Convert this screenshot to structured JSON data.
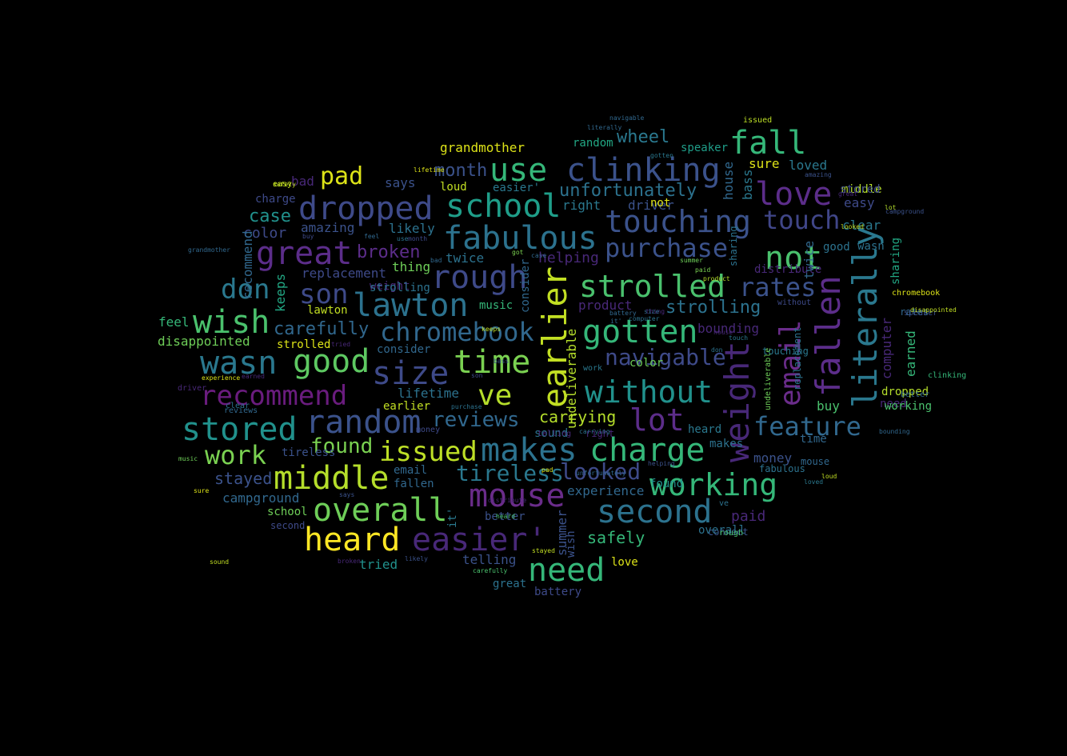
{
  "words": [
    {
      "text": "clinking",
      "color": "#3b528b"
    },
    {
      "text": "fall",
      "color": "#35b779"
    },
    {
      "text": "use",
      "color": "#35b779"
    },
    {
      "text": "love",
      "color": "#5c2d8a"
    },
    {
      "text": "school",
      "color": "#1f9e89"
    },
    {
      "text": "dropped",
      "color": "#3e4a89"
    },
    {
      "text": "touching",
      "color": "#3b528b"
    },
    {
      "text": "touch",
      "color": "#404688"
    },
    {
      "text": "fabulous",
      "color": "#2c728e"
    },
    {
      "text": "purchase",
      "color": "#3b528b"
    },
    {
      "text": "not",
      "color": "#4ac16d"
    },
    {
      "text": "great",
      "color": "#5c2d8a"
    },
    {
      "text": "pad",
      "color": "#dde318"
    },
    {
      "text": "rough",
      "color": "#3e4a89"
    },
    {
      "text": "strolled",
      "color": "#4ac16d"
    },
    {
      "text": "rates",
      "color": "#3b528b"
    },
    {
      "text": "lawton",
      "color": "#2c728e"
    },
    {
      "text": "wish",
      "color": "#4ac16d"
    },
    {
      "text": "earlier",
      "color": "#c2df23"
    },
    {
      "text": "gotten",
      "color": "#35b779"
    },
    {
      "text": "literally",
      "color": "#2a788e"
    },
    {
      "text": "fallen",
      "color": "#5c2d8a"
    },
    {
      "text": "email",
      "color": "#6a2c8a"
    },
    {
      "text": "weight",
      "color": "#482878"
    },
    {
      "text": "chromebook",
      "color": "#31688e"
    },
    {
      "text": "wasn",
      "color": "#2a788e"
    },
    {
      "text": "good",
      "color": "#5ec962"
    },
    {
      "text": "size",
      "color": "#3e4a89"
    },
    {
      "text": "time",
      "color": "#7ad151"
    },
    {
      "text": "ve",
      "color": "#b5de2b"
    },
    {
      "text": "without",
      "color": "#21918c"
    },
    {
      "text": "navigable",
      "color": "#3e4a89"
    },
    {
      "text": "recommend",
      "color": "#6a1c7e"
    },
    {
      "text": "stored",
      "color": "#21918c"
    },
    {
      "text": "random",
      "color": "#3b528b"
    },
    {
      "text": "lot",
      "color": "#5c2d8a"
    },
    {
      "text": "feature",
      "color": "#31688e"
    },
    {
      "text": "issued",
      "color": "#bddf26"
    },
    {
      "text": "makes",
      "color": "#2c728e"
    },
    {
      "text": "charge",
      "color": "#35b779"
    },
    {
      "text": "work",
      "color": "#7ad151"
    },
    {
      "text": "middle",
      "color": "#b5de2b"
    },
    {
      "text": "mouse",
      "color": "#6a2c8a"
    },
    {
      "text": "working",
      "color": "#35b779"
    },
    {
      "text": "overall",
      "color": "#6ece58"
    },
    {
      "text": "second",
      "color": "#2c728e"
    },
    {
      "text": "heard",
      "color": "#fde725"
    },
    {
      "text": "easier'",
      "color": "#482878"
    },
    {
      "text": "need",
      "color": "#35b779"
    },
    {
      "text": "son",
      "color": "#3e4a89"
    },
    {
      "text": "don",
      "color": "#2a788e"
    },
    {
      "text": "reviews",
      "color": "#31688e"
    },
    {
      "text": "carrying",
      "color": "#b5de2b"
    },
    {
      "text": "found",
      "color": "#7ad151"
    },
    {
      "text": "tireless",
      "color": "#2a788e"
    },
    {
      "text": "looked",
      "color": "#3e4a89"
    },
    {
      "text": "unfortunately",
      "color": "#2c728e"
    },
    {
      "text": "wheel",
      "color": "#2a788e"
    },
    {
      "text": "strolling",
      "color": "#2c728e"
    },
    {
      "text": "carefully",
      "color": "#31688e"
    },
    {
      "text": "grandmother",
      "color": "#dde318"
    },
    {
      "text": "month",
      "color": "#3b528b"
    },
    {
      "text": "loved",
      "color": "#2a788e"
    },
    {
      "text": "sure",
      "color": "#dde318"
    },
    {
      "text": "speaker",
      "color": "#1f9e89"
    },
    {
      "text": "random",
      "color": "#22a884"
    },
    {
      "text": "case",
      "color": "#21918c"
    },
    {
      "text": "color",
      "color": "#3e4a89"
    },
    {
      "text": "amazing",
      "color": "#3b528b"
    },
    {
      "text": "broken",
      "color": "#5c2d8a"
    },
    {
      "text": "replacement",
      "color": "#3e4a89"
    },
    {
      "text": "twice",
      "color": "#2c728e"
    },
    {
      "text": "thing",
      "color": "#6ece58"
    },
    {
      "text": "helping",
      "color": "#482878"
    },
    {
      "text": "likely",
      "color": "#2c728e"
    },
    {
      "text": "says",
      "color": "#3b528b"
    },
    {
      "text": "bad",
      "color": "#482878"
    },
    {
      "text": "charge",
      "color": "#3e4a89"
    },
    {
      "text": "loud",
      "color": "#c2df23"
    },
    {
      "text": "easier'",
      "color": "#2a788e"
    },
    {
      "text": "right",
      "color": "#2a788e"
    },
    {
      "text": "driver",
      "color": "#3b528b"
    },
    {
      "text": "house",
      "color": "#31688e"
    },
    {
      "text": "bass",
      "color": "#2a788e"
    },
    {
      "text": "product",
      "color": "#482878"
    },
    {
      "text": "paid",
      "color": "#482878"
    },
    {
      "text": "buy",
      "color": "#4ac16d"
    },
    {
      "text": "stayed",
      "color": "#3b528b"
    },
    {
      "text": "campground",
      "color": "#31688e"
    },
    {
      "text": "experience",
      "color": "#31688e"
    },
    {
      "text": "safely",
      "color": "#35b779"
    },
    {
      "text": "money",
      "color": "#3b528b"
    },
    {
      "text": "keeps",
      "color": "#22a884"
    },
    {
      "text": "lifetime",
      "color": "#2c728e"
    },
    {
      "text": "consider",
      "color": "#31688e"
    },
    {
      "text": "earned",
      "color": "#35b779"
    },
    {
      "text": "computer",
      "color": "#482878"
    },
    {
      "text": "sharing",
      "color": "#22a884"
    },
    {
      "text": "clear",
      "color": "#2a788e"
    },
    {
      "text": "good",
      "color": "#2c728e"
    },
    {
      "text": "easy",
      "color": "#3e4a89"
    },
    {
      "text": "distribute",
      "color": "#482878"
    },
    {
      "text": "bounding",
      "color": "#482878"
    },
    {
      "text": "undeliverable",
      "color": "#b5de2b"
    },
    {
      "text": "music",
      "color": "#35b779"
    },
    {
      "text": "battery",
      "color": "#3e4a89"
    },
    {
      "text": "tried",
      "color": "#21918c"
    },
    {
      "text": "telling",
      "color": "#3b528b"
    },
    {
      "text": "great",
      "color": "#2c728e"
    },
    {
      "text": "summer",
      "color": "#3b528b"
    },
    {
      "text": "better",
      "color": "#3b528b"
    },
    {
      "text": "sound",
      "color": "#2c728e"
    },
    {
      "text": "fallen",
      "color": "#31688e"
    },
    {
      "text": "email",
      "color": "#31688e"
    },
    {
      "text": "earlier",
      "color": "#c2df23"
    },
    {
      "text": "lawton",
      "color": "#c2df23"
    },
    {
      "text": "strolled",
      "color": "#dde318"
    },
    {
      "text": "disappointed",
      "color": "#6ece58"
    },
    {
      "text": "feel",
      "color": "#35b779"
    },
    {
      "text": "weight",
      "color": "#482878"
    },
    {
      "text": "school",
      "color": "#6ece58"
    },
    {
      "text": "second",
      "color": "#3e4a89"
    },
    {
      "text": "love",
      "color": "#dde318"
    },
    {
      "text": "issued",
      "color": "#bddf26"
    },
    {
      "text": "time",
      "color": "#31688e"
    },
    {
      "text": "mouse",
      "color": "#31688e"
    },
    {
      "text": "wasn",
      "color": "#2c728e"
    },
    {
      "text": "need",
      "color": "#482878"
    },
    {
      "text": "fabulous",
      "color": "#2c728e"
    },
    {
      "text": "connect",
      "color": "#3b528b"
    },
    {
      "text": "heard",
      "color": "#2a788e"
    },
    {
      "text": "makes",
      "color": "#2c728e"
    },
    {
      "text": "overall",
      "color": "#2c728e"
    },
    {
      "text": "rough",
      "color": "#4ac16d"
    },
    {
      "text": "tireless",
      "color": "#3b528b"
    },
    {
      "text": "ve",
      "color": "#2c728e"
    },
    {
      "text": "it'",
      "color": "#2a788e"
    },
    {
      "text": "found",
      "color": "#21918c"
    },
    {
      "text": "wish",
      "color": "#3b528b"
    },
    {
      "text": "work",
      "color": "#2a788e"
    },
    {
      "text": "dropped",
      "color": "#b5de2b"
    },
    {
      "text": "working",
      "color": "#4ac16d"
    },
    {
      "text": "clinking",
      "color": "#35b779"
    },
    {
      "text": "without",
      "color": "#3e4a89"
    },
    {
      "text": "chromebook",
      "color": "#dde318"
    },
    {
      "text": "middle",
      "color": "#b5de2b"
    },
    {
      "text": "stored",
      "color": "#3e4a89"
    },
    {
      "text": "navigable",
      "color": "#31688e"
    },
    {
      "text": "literally",
      "color": "#31688e"
    },
    {
      "text": "rates",
      "color": "#31688e"
    },
    {
      "text": "not",
      "color": "#dde318"
    },
    {
      "text": "lifetime",
      "color": "#dde318"
    },
    {
      "text": "safely",
      "color": "#c2df23"
    },
    {
      "text": "easy",
      "color": "#c2df23"
    },
    {
      "text": "buy",
      "color": "#3e4a89"
    },
    {
      "text": "speaker",
      "color": "#3b528b"
    },
    {
      "text": "recommend",
      "color": "#31688e"
    },
    {
      "text": "right",
      "color": "#482878"
    },
    {
      "text": "feel",
      "color": "#31688e"
    },
    {
      "text": "use",
      "color": "#2c728e"
    },
    {
      "text": "bad",
      "color": "#31688e"
    },
    {
      "text": "grandmother",
      "color": "#31688e"
    },
    {
      "text": "case",
      "color": "#31688e"
    },
    {
      "text": "lot",
      "color": "#b5de2b"
    },
    {
      "text": "product",
      "color": "#b5de2b"
    },
    {
      "text": "amazing",
      "color": "#3b528b"
    },
    {
      "text": "twice",
      "color": "#31688e"
    },
    {
      "text": "got",
      "color": "#7ad151"
    },
    {
      "text": "summer",
      "color": "#6ece58"
    },
    {
      "text": "sharing",
      "color": "#2c728e"
    },
    {
      "text": "it'",
      "color": "#31688e"
    },
    {
      "text": "replacement",
      "color": "#2c728e"
    },
    {
      "text": "thing",
      "color": "#482878"
    },
    {
      "text": "keeps",
      "color": "#c2df23"
    },
    {
      "text": "paid",
      "color": "#7ad151"
    },
    {
      "text": "size",
      "color": "#31688e"
    },
    {
      "text": "consider",
      "color": "#31688e"
    },
    {
      "text": "strolling",
      "color": "#2c728e"
    },
    {
      "text": "computer",
      "color": "#2c728e"
    },
    {
      "text": "touching",
      "color": "#2a788e"
    },
    {
      "text": "helping",
      "color": "#3b528b"
    },
    {
      "text": "undeliverable",
      "color": "#6ece58"
    },
    {
      "text": "don",
      "color": "#2c728e"
    },
    {
      "text": "driver",
      "color": "#482878"
    },
    {
      "text": "son",
      "color": "#3e4a89"
    },
    {
      "text": "experience",
      "color": "#dde318"
    },
    {
      "text": "money",
      "color": "#3e4a89"
    },
    {
      "text": "distribute",
      "color": "#482878"
    },
    {
      "text": "battery",
      "color": "#31688e"
    },
    {
      "text": "color",
      "color": "#6ece58"
    },
    {
      "text": "carrying",
      "color": "#2c728e"
    },
    {
      "text": "telling",
      "color": "#482878"
    },
    {
      "text": "unfortunately",
      "color": "#31688e"
    },
    {
      "text": "month",
      "color": "#3e4a89"
    },
    {
      "text": "purchase",
      "color": "#2c728e"
    },
    {
      "text": "reviews",
      "color": "#31688e"
    },
    {
      "text": "music",
      "color": "#6ece58"
    },
    {
      "text": "earned",
      "color": "#482878"
    },
    {
      "text": "broken",
      "color": "#482878"
    },
    {
      "text": "stayed",
      "color": "#c2df23"
    },
    {
      "text": "likely",
      "color": "#3b528b"
    },
    {
      "text": "carefully",
      "color": "#4ac16d"
    },
    {
      "text": "clear",
      "color": "#2c728e"
    },
    {
      "text": "tried",
      "color": "#482878"
    },
    {
      "text": "sure",
      "color": "#dde318"
    },
    {
      "text": "loud",
      "color": "#c2df23"
    },
    {
      "text": "says",
      "color": "#3b528b"
    },
    {
      "text": "heard",
      "color": "#4ac16d"
    },
    {
      "text": "sound",
      "color": "#c2df23"
    },
    {
      "text": "campground",
      "color": "#3b528b"
    },
    {
      "text": "loved",
      "color": "#2a788e"
    },
    {
      "text": "disappointed",
      "color": "#c2df23"
    },
    {
      "text": "better",
      "color": "#31688e"
    },
    {
      "text": "touch",
      "color": "#2a788e"
    },
    {
      "text": "house",
      "color": "#482878"
    },
    {
      "text": "gotten",
      "color": "#2a788e"
    },
    {
      "text": "looked",
      "color": "#c2df23"
    },
    {
      "text": "great",
      "color": "#482878"
    },
    {
      "text": "bass",
      "color": "#3b528b"
    },
    {
      "text": "pad",
      "color": "#dde318"
    },
    {
      "text": "bounding",
      "color": "#31688e"
    },
    {
      "text": "wheel",
      "color": "#3e4a89"
    },
    {
      "text": "navigable",
      "color": "#3e4a89"
    },
    {
      "text": "feature",
      "color": "#3e4a89"
    },
    {
      "text": "time",
      "color": "#3b528b"
    },
    {
      "text": "need",
      "color": "#3b528b"
    }
  ]
}
